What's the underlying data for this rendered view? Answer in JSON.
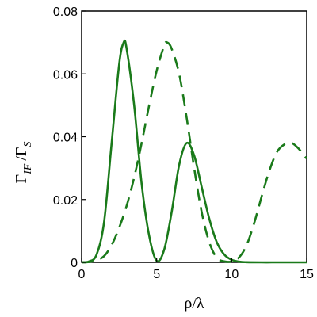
{
  "chart_data": {
    "type": "line",
    "xlabel": "ρ/λ",
    "ylabel": {
      "gamma1": "Γ",
      "sub1": "IF",
      "slash": "/",
      "gamma2": "Γ",
      "sub2": "S"
    },
    "xlim": [
      0,
      15
    ],
    "ylim": [
      0,
      0.08
    ],
    "grid": false,
    "x_ticks": [
      0,
      5,
      10,
      15
    ],
    "x_tick_labels": [
      "0",
      "5",
      "10",
      "15"
    ],
    "y_ticks": [
      0,
      0.02,
      0.04,
      0.06,
      0.08
    ],
    "y_tick_labels": [
      "0",
      "0.02",
      "0.04",
      "0.06",
      "0.08"
    ],
    "line_color": "#1a7a1a",
    "series": [
      {
        "style": "solid",
        "x": [
          0,
          0.5,
          1,
          1.5,
          2,
          2.5,
          2.8,
          3,
          3.5,
          4,
          4.5,
          5,
          5.5,
          6,
          6.5,
          7,
          7.5,
          8,
          8.5,
          9,
          9.5,
          10,
          10.5,
          11,
          12,
          13,
          14,
          15
        ],
        "y": [
          0,
          0.0003,
          0.0025,
          0.013,
          0.038,
          0.063,
          0.07,
          0.068,
          0.05,
          0.025,
          0.0085,
          0.0005,
          0.004,
          0.016,
          0.031,
          0.038,
          0.034,
          0.024,
          0.014,
          0.0065,
          0.0025,
          0.0008,
          0.0002,
          5e-05,
          0,
          0,
          0,
          0
        ]
      },
      {
        "style": "dashed",
        "x": [
          0,
          0.5,
          1,
          1.5,
          2,
          2.5,
          3,
          3.5,
          4,
          4.5,
          5,
          5.5,
          5.7,
          6,
          6.5,
          7,
          7.5,
          8,
          8.5,
          9,
          9.5,
          10,
          10.5,
          11,
          11.5,
          12,
          12.5,
          13,
          13.5,
          14,
          14.5,
          15
        ],
        "y": [
          0,
          0.0001,
          0.0007,
          0.002,
          0.0055,
          0.011,
          0.018,
          0.027,
          0.038,
          0.05,
          0.061,
          0.069,
          0.07,
          0.068,
          0.06,
          0.046,
          0.03,
          0.016,
          0.0065,
          0.0015,
          0.0003,
          0.0003,
          0.0016,
          0.0055,
          0.0125,
          0.021,
          0.029,
          0.035,
          0.0375,
          0.038,
          0.036,
          0.033
        ]
      }
    ]
  }
}
